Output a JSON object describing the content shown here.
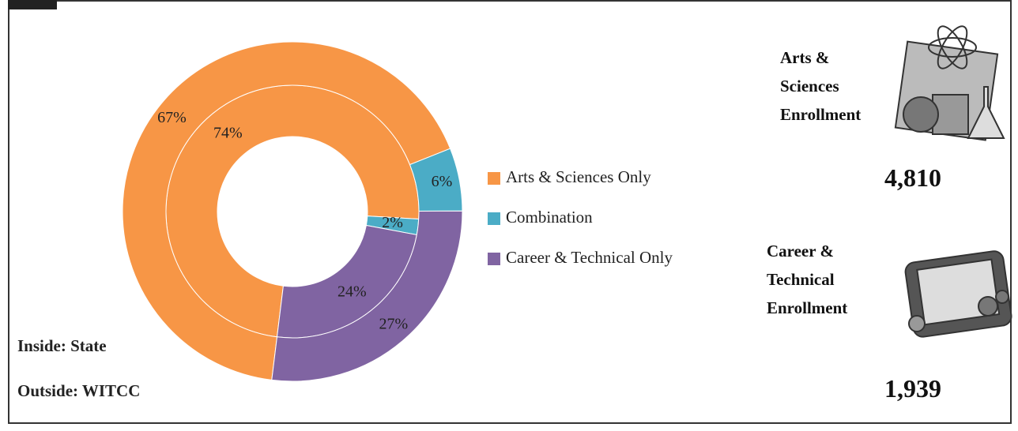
{
  "chart_data": {
    "type": "donut",
    "categories": [
      "Arts & Sciences Only",
      "Combination",
      "Career & Technical Only"
    ],
    "colors": [
      "#F79646",
      "#4BACC6",
      "#8064A2"
    ],
    "series": [
      {
        "name": "Inside: State",
        "values": [
          74,
          2,
          24
        ],
        "value_labels": [
          "74%",
          "2%",
          "24%"
        ]
      },
      {
        "name": "Outside: WITCC",
        "values": [
          67,
          6,
          27
        ],
        "value_labels": [
          "67%",
          "6%",
          "27%"
        ]
      }
    ]
  },
  "cards": [
    {
      "title": "Arts & Sciences Enrollment",
      "count": "4,810"
    },
    {
      "title": "Career & Technical Enrollment",
      "count": "1,939"
    }
  ]
}
